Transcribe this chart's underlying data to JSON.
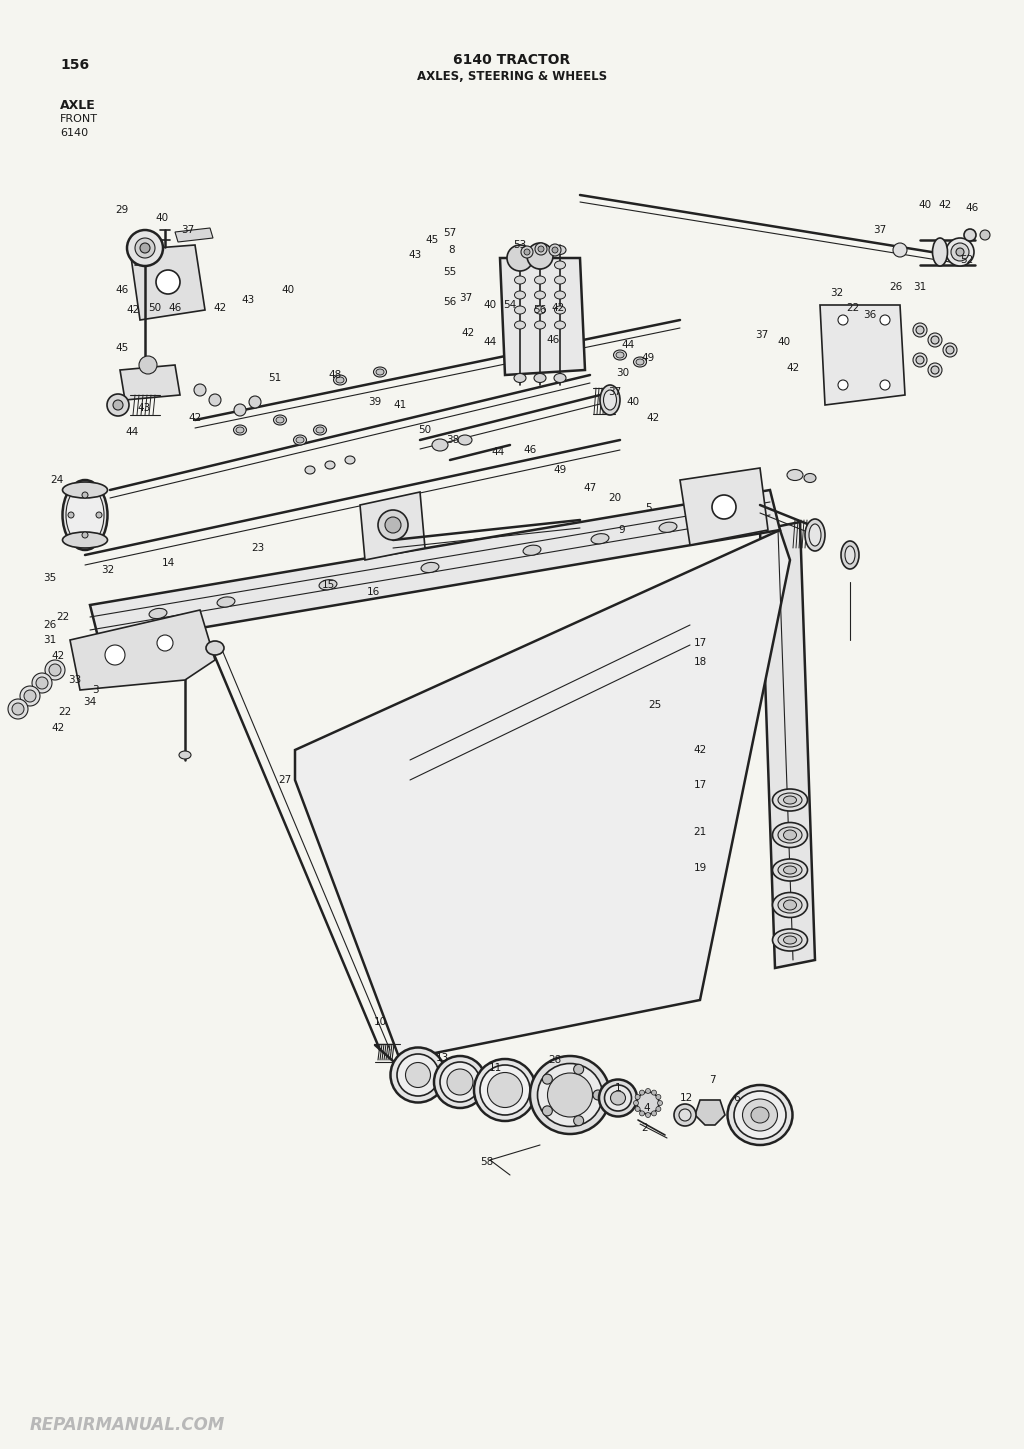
{
  "page_number": "156",
  "title_line1": "6140 TRACTOR",
  "title_line2": "AXLES, STEERING & WHEELS",
  "subtitle_line1": "AXLE",
  "subtitle_line2": "FRONT",
  "subtitle_line3": "6140",
  "watermark": "REPAIRMANUAL.COM",
  "bg_color": "#f5f5f0",
  "text_color": "#1a1a1a",
  "diagram_color": "#222222",
  "watermark_color": "#b8b8b8",
  "border_color": "#888888"
}
